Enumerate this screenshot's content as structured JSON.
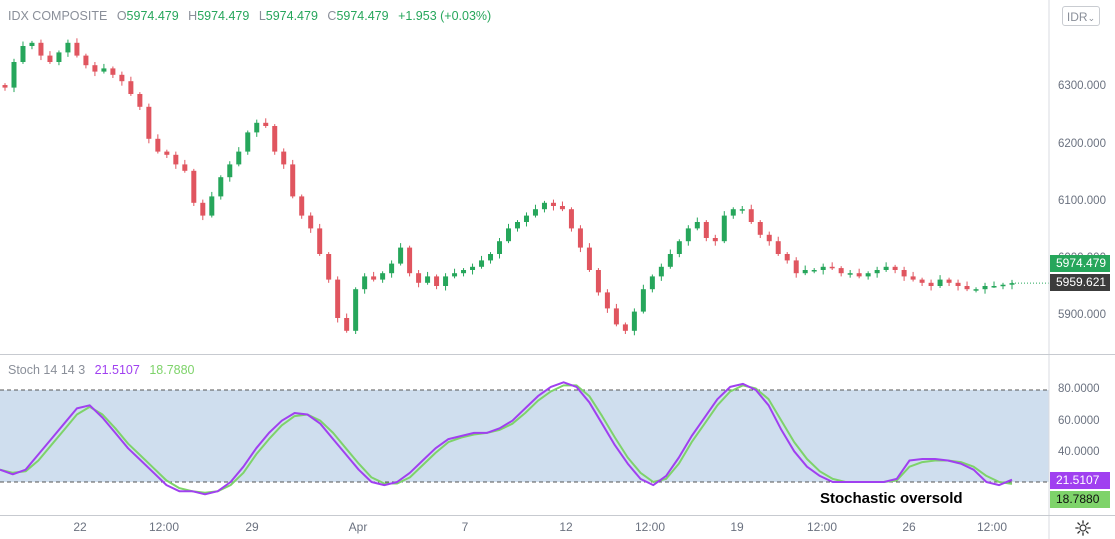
{
  "header": {
    "symbol": "IDX COMPOSITE",
    "o_label": "O",
    "o_value": "5974.479",
    "h_label": "H",
    "h_value": "5974.479",
    "l_label": "L",
    "l_value": "5974.479",
    "c_label": "C",
    "c_value": "5974.479",
    "change": "+1.953 (+0.03%)"
  },
  "currency_button": {
    "label": "IDR",
    "icon": "chevron-down-icon"
  },
  "settings_icon": "gear-icon",
  "colors": {
    "up": "#26a65b",
    "down": "#e0555f",
    "stoch_k": "#a040f0",
    "stoch_d": "#7ed36a",
    "band_fill": "#cfdeee",
    "last_price": "#26a65b",
    "cursor_price": "#3c3c3c"
  },
  "price_axis": {
    "ticks": [
      "6300.000",
      "6200.000",
      "6100.000",
      "6000.000",
      "5900.000"
    ],
    "last_price_label": "5974.479",
    "cursor_price_label": "5959.621"
  },
  "stoch_axis": {
    "ticks": [
      "80.0000",
      "60.0000",
      "40.0000"
    ],
    "k_label": "21.5107",
    "d_label": "18.7880"
  },
  "time_axis": {
    "ticks": [
      "22",
      "12:00",
      "29",
      "Apr",
      "7",
      "12",
      "12:00",
      "19",
      "12:00",
      "26",
      "12:00"
    ]
  },
  "stoch_legend": {
    "name": "Stoch 14 14 3",
    "k_value": "21.5107",
    "d_value": "18.7880"
  },
  "annotation": "Stochastic oversold",
  "chart_data": [
    {
      "type": "candlestick",
      "title": "IDX COMPOSITE",
      "y_range": [
        5870,
        6370
      ],
      "candles_approx_close": [
        6280,
        6320,
        6345,
        6350,
        6330,
        6320,
        6335,
        6350,
        6330,
        6315,
        6305,
        6310,
        6300,
        6290,
        6270,
        6250,
        6200,
        6180,
        6175,
        6160,
        6150,
        6100,
        6080,
        6110,
        6140,
        6160,
        6180,
        6210,
        6225,
        6220,
        6180,
        6160,
        6110,
        6080,
        6060,
        6020,
        5980,
        5920,
        5900,
        5965,
        5985,
        5980,
        5990,
        6005,
        6030,
        5990,
        5975,
        5985,
        5970,
        5985,
        5990,
        5995,
        6000,
        6010,
        6020,
        6040,
        6060,
        6070,
        6080,
        6090,
        6100,
        6095,
        6090,
        6060,
        6030,
        5995,
        5960,
        5935,
        5910,
        5900,
        5930,
        5965,
        5985,
        6000,
        6020,
        6040,
        6060,
        6070,
        6045,
        6040,
        6080,
        6090,
        6090,
        6070,
        6050,
        6040,
        6020,
        6010,
        5990,
        5995,
        5995,
        6000,
        5998,
        5990,
        5990,
        5985,
        5990,
        5995,
        6000,
        5995,
        5985,
        5980,
        5975,
        5970,
        5980,
        5975,
        5970,
        5965,
        5965,
        5970,
        5970,
        5972,
        5974.479
      ]
    },
    {
      "type": "line",
      "title": "Stoch 14 14 3",
      "y_range": [
        0,
        100
      ],
      "reference_lines": [
        80,
        20
      ],
      "series": [
        {
          "name": "%K",
          "values": [
            28,
            25,
            28,
            38,
            48,
            58,
            68,
            70,
            62,
            52,
            42,
            34,
            26,
            18,
            14,
            14,
            12,
            14,
            20,
            30,
            42,
            52,
            60,
            65,
            64,
            58,
            48,
            38,
            28,
            20,
            18,
            20,
            26,
            34,
            42,
            48,
            50,
            52,
            52,
            55,
            60,
            68,
            76,
            82,
            85,
            82,
            72,
            58,
            44,
            32,
            22,
            18,
            24,
            36,
            50,
            62,
            74,
            82,
            84,
            80,
            70,
            54,
            40,
            30,
            24,
            20,
            20,
            20,
            20,
            20,
            22,
            34,
            35,
            35,
            34,
            32,
            28,
            20,
            18,
            21.5107
          ]
        },
        {
          "name": "%D",
          "values": [
            28,
            26,
            27,
            34,
            44,
            54,
            64,
            69,
            64,
            55,
            45,
            37,
            29,
            21,
            16,
            14,
            13,
            14,
            18,
            26,
            38,
            48,
            57,
            63,
            64,
            60,
            52,
            42,
            32,
            23,
            19,
            19,
            23,
            31,
            39,
            46,
            49,
            51,
            52,
            54,
            58,
            65,
            73,
            79,
            83,
            83,
            76,
            63,
            49,
            36,
            26,
            20,
            22,
            32,
            46,
            58,
            70,
            79,
            83,
            81,
            74,
            60,
            46,
            35,
            27,
            22,
            20,
            20,
            20,
            20,
            21,
            30,
            33,
            34,
            34,
            33,
            30,
            24,
            20,
            18.788
          ]
        }
      ]
    }
  ]
}
